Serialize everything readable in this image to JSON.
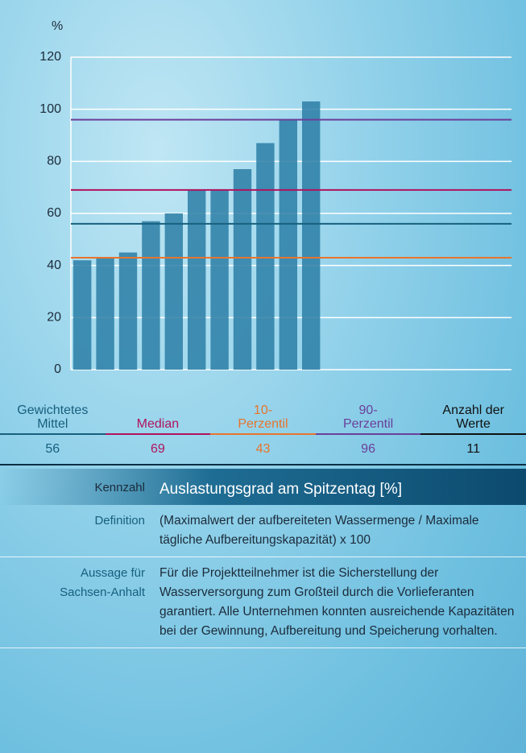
{
  "chart_data": {
    "type": "bar",
    "y_label": "%",
    "values": [
      42,
      43,
      45,
      57,
      60,
      69,
      69,
      77,
      87,
      96,
      103
    ],
    "color": "#2b7ea6",
    "ylim": [
      0,
      120
    ],
    "yticks": [
      0,
      20,
      40,
      60,
      80,
      100,
      120
    ],
    "grid": true,
    "summary": [
      {
        "label": "Gewichtetes Mittel",
        "value": 56,
        "color": "#17607e",
        "reference_line": true
      },
      {
        "label": "Median",
        "value": 69,
        "color": "#b0135e",
        "reference_line": true
      },
      {
        "label": "10-Perzentil",
        "value": 43,
        "color": "#e8742c",
        "reference_line": true
      },
      {
        "label": "90-Perzentil",
        "value": 96,
        "color": "#6b3f9a",
        "reference_line": true
      },
      {
        "label": "Anzahl der Werte",
        "value": 11,
        "color": "#111111",
        "reference_line": false
      }
    ]
  },
  "table": {
    "rows": [
      [
        "Kennzahl",
        "Auslastungsgrad am Spitzentag [%]"
      ],
      [
        "Definition",
        "(Maximalwert der aufbereiteten Wassermenge / Maximale tägliche Aufbereitungskapazität) x 100"
      ],
      [
        "Aussage für Sachsen-Anhalt",
        "Für die Projektteilnehmer ist die Sicherstellung der Wasserversorgung zum Großteil durch die Vorlieferanten garantiert. Alle Unternehmen konnten ausreichende Kapazitäten bei der Gewinnung, Aufbereitung und Speicherung vorhalten."
      ]
    ]
  }
}
